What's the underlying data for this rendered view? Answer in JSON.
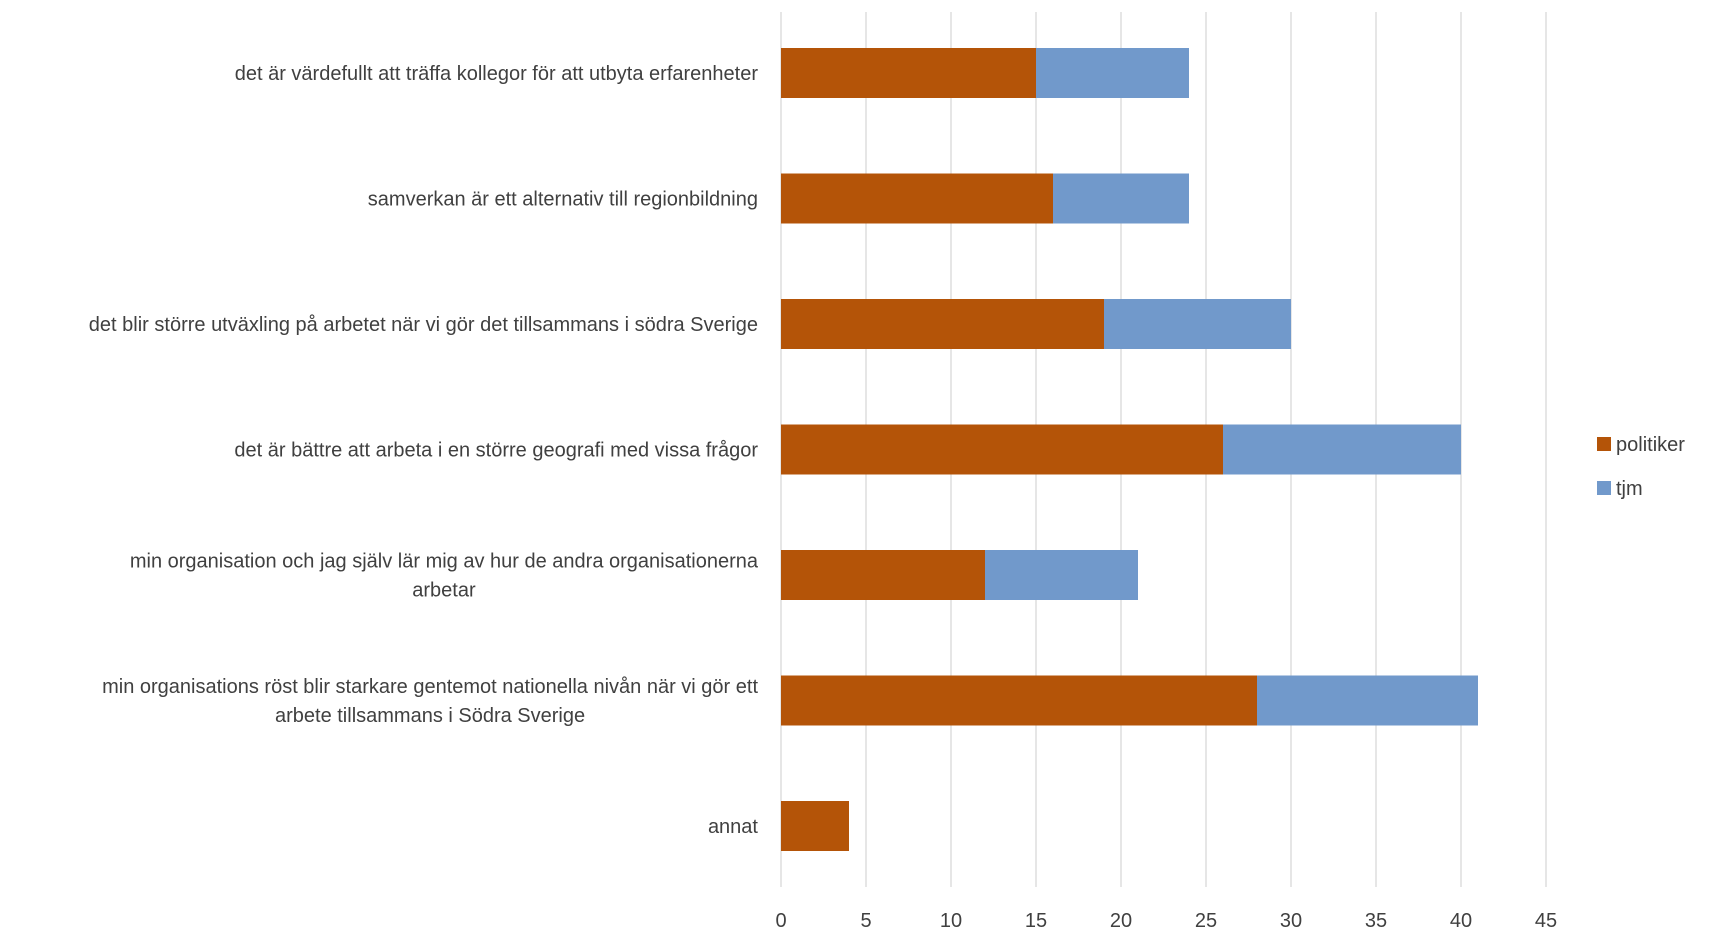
{
  "chart_data": {
    "type": "bar",
    "orientation": "horizontal",
    "stacked": true,
    "categories": [
      [
        "det är värdefullt att träffa kollegor för att utbyta erfarenheter"
      ],
      [
        "samverkan är ett alternativ till regionbildning"
      ],
      [
        "det blir större utväxling på arbetet när vi gör det tillsammans i södra Sverige"
      ],
      [
        "det är bättre att arbeta i en större geografi med vissa frågor"
      ],
      [
        "min organisation och jag själv lär mig av hur de andra organisationerna",
        "arbetar"
      ],
      [
        "min organisations röst blir starkare gentemot nationella nivån när vi gör ett",
        "arbete tillsammans i Södra Sverige"
      ],
      [
        "annat"
      ]
    ],
    "series": [
      {
        "name": "politiker",
        "color": "#b45408",
        "values": [
          15,
          16,
          19,
          26,
          12,
          28,
          4
        ]
      },
      {
        "name": "tjm",
        "color": "#7199cb",
        "values": [
          9,
          8,
          11,
          14,
          9,
          13,
          0
        ]
      }
    ],
    "xlim": [
      0,
      45
    ],
    "xticks": [
      "0",
      "5",
      "10",
      "15",
      "20",
      "25",
      "30",
      "35",
      "40",
      "45"
    ],
    "grid": true,
    "legend": "right"
  }
}
